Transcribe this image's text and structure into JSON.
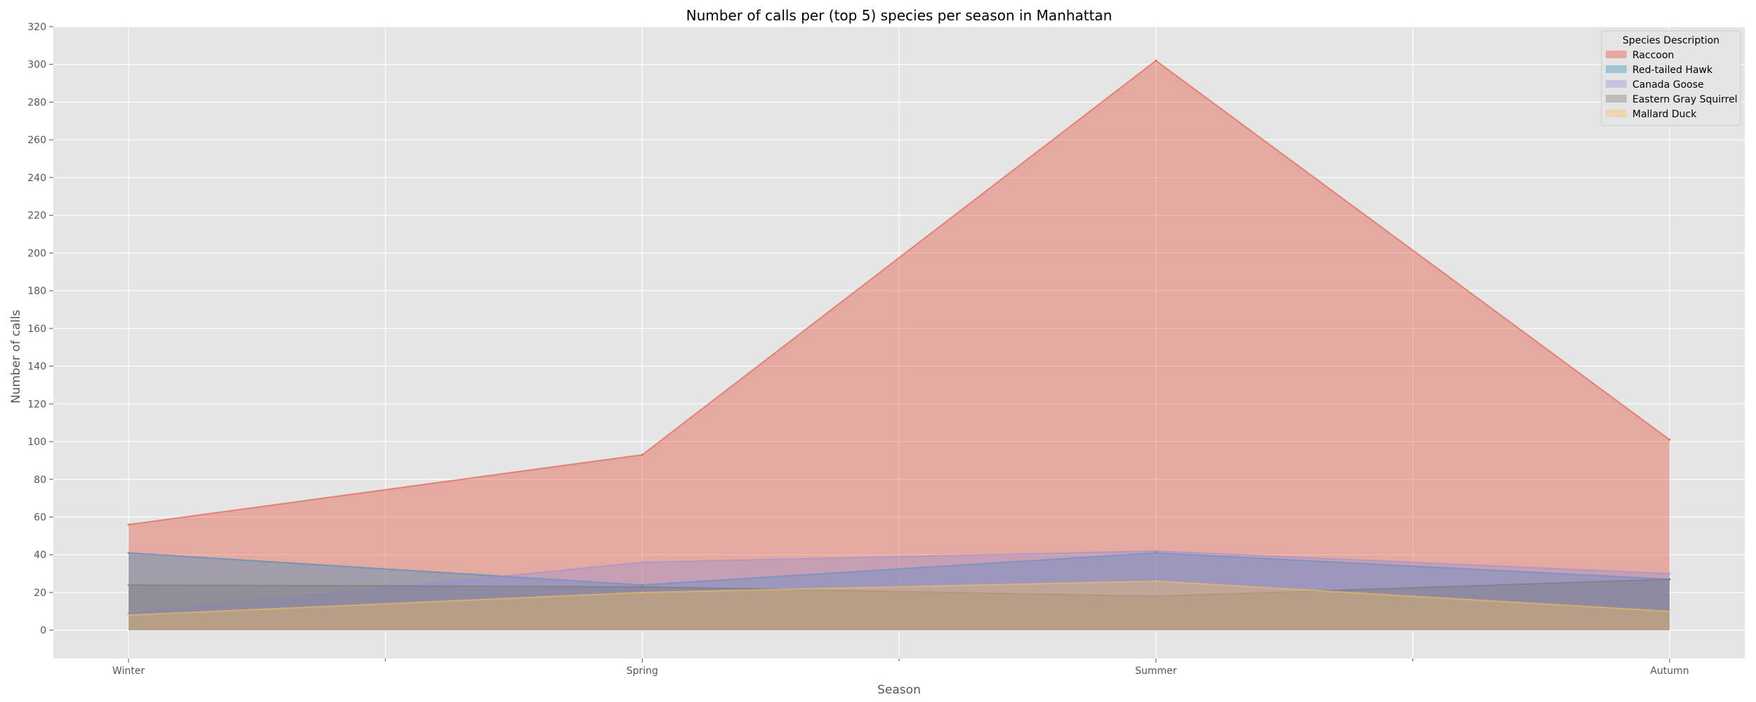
{
  "chart_data": {
    "type": "area",
    "title": "Number of calls per (top 5) species per season in Manhattan",
    "xlabel": "Season",
    "ylabel": "Number of calls",
    "categories": [
      "Winter",
      "Spring",
      "Summer",
      "Autumn"
    ],
    "ylim": [
      -15,
      320
    ],
    "yticks": [
      0,
      20,
      40,
      60,
      80,
      100,
      120,
      140,
      160,
      180,
      200,
      220,
      240,
      260,
      280,
      300,
      320
    ],
    "grid": true,
    "stacked": false,
    "legend": {
      "title": "Species Description",
      "placement": "top-right"
    },
    "series": [
      {
        "name": "Raccoon",
        "values": [
          56,
          93,
          302,
          101
        ],
        "color": "#E24A33"
      },
      {
        "name": "Red-tailed Hawk",
        "values": [
          41,
          24,
          41,
          27
        ],
        "color": "#348ABD"
      },
      {
        "name": "Canada Goose",
        "values": [
          9,
          36,
          42,
          30
        ],
        "color": "#988ED5"
      },
      {
        "name": "Eastern Gray Squirrel",
        "values": [
          24,
          23,
          18,
          27
        ],
        "color": "#777777"
      },
      {
        "name": "Mallard Duck",
        "values": [
          8,
          20,
          26,
          10
        ],
        "color": "#FBC15E"
      }
    ]
  }
}
